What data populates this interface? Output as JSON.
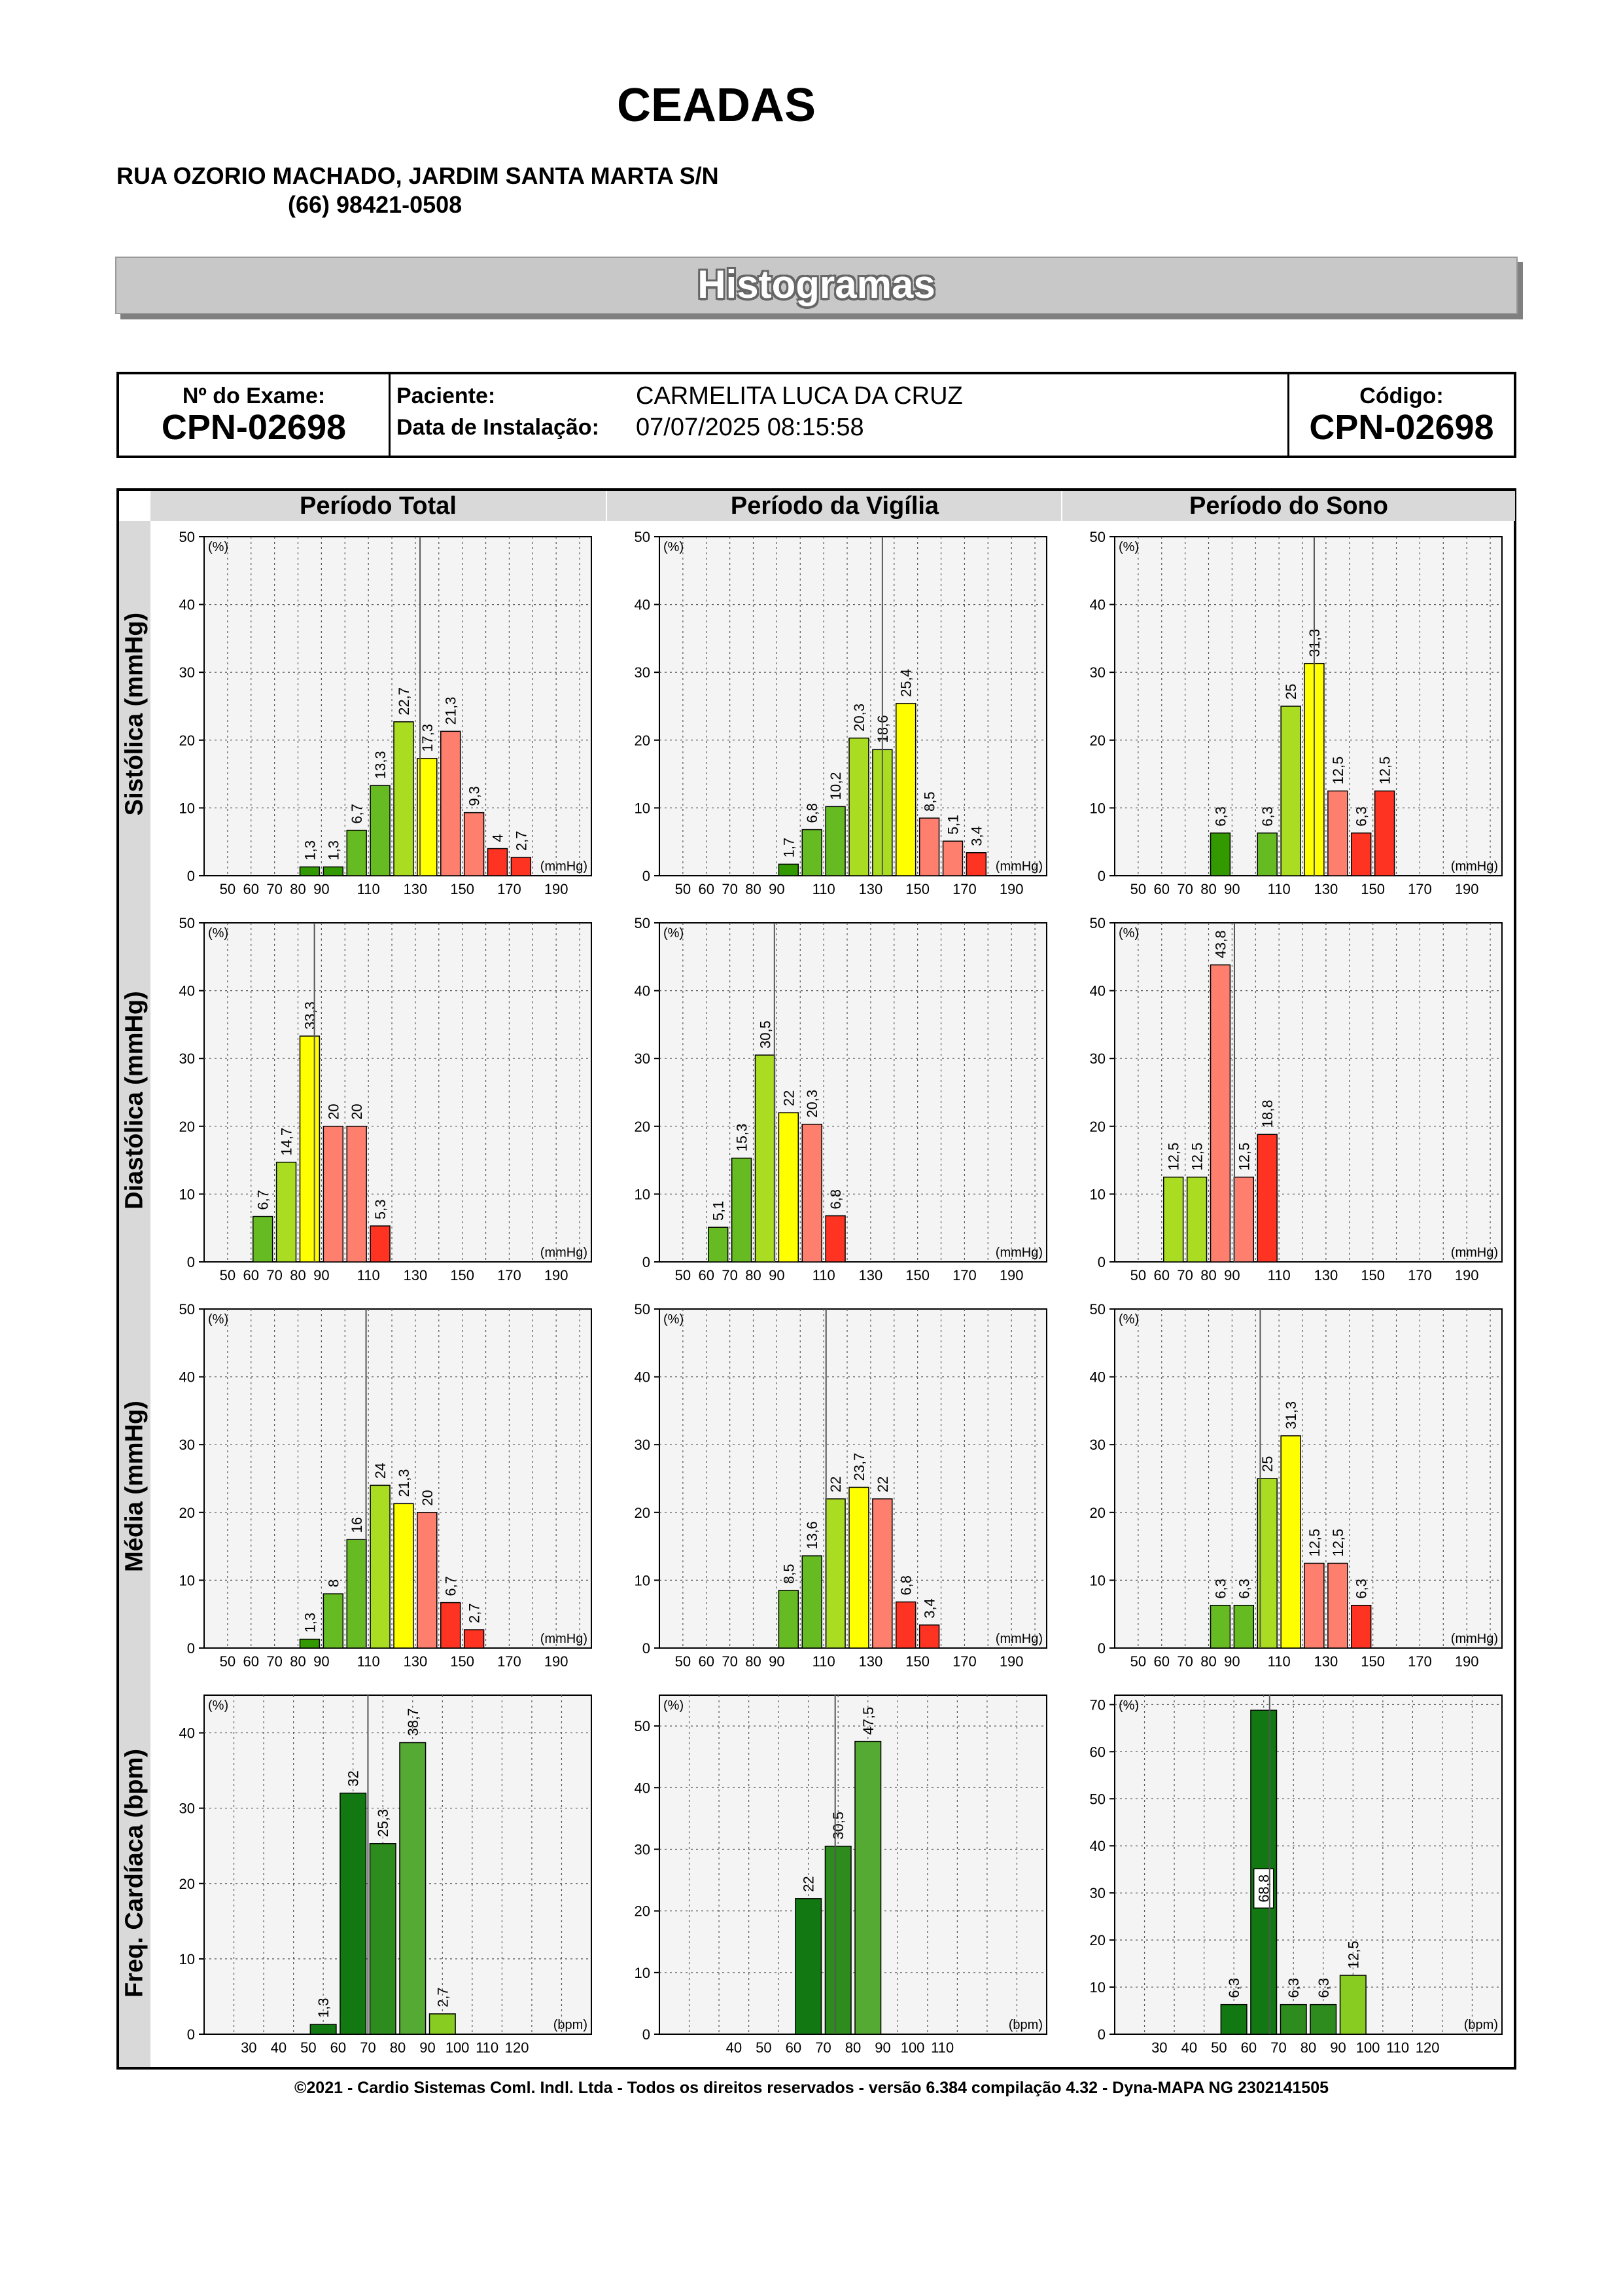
{
  "header": {
    "clinic_name": "CEADAS",
    "address": "RUA OZORIO MACHADO, JARDIM SANTA MARTA S/N",
    "phone": "(66) 98421-0508"
  },
  "banner_title": "Histogramas",
  "exam": {
    "exam_number_label": "Nº do Exame:",
    "exam_number": "CPN-02698",
    "patient_label": "Paciente:",
    "patient_name": "CARMELITA LUCA DA  CRUZ",
    "install_label": "Data de Instalação:",
    "install_date": "07/07/2025 08:15:58",
    "code_label": "Código:",
    "code": "CPN-02698"
  },
  "columns": [
    "Período Total",
    "Período da Vigília",
    "Período do Sono"
  ],
  "rows": [
    "Sistólica (mmHg)",
    "Diastólica (mmHg)",
    "Média (mmHg)",
    "Freq. Cardíaca (bpm)"
  ],
  "colors": {
    "dark_green": "#339900",
    "green": "#66bb22",
    "light_green": "#aadd22",
    "yellow": "#ffff00",
    "salmon": "#ff7f6e",
    "red": "#ff3322",
    "hr_dark": "#127812",
    "hr_mid": "#2e8b1e",
    "hr_light": "#55aa33",
    "hr_lime": "#88cc22",
    "plot_bg": "#f4f4f4"
  },
  "chart_data": [
    {
      "type": "bar",
      "row": "Sistólica (mmHg)",
      "column": "Período Total",
      "unit": "(mmHg)",
      "ylabel": "(%)",
      "ylim": [
        0,
        50
      ],
      "yticks": [
        0,
        10,
        20,
        30,
        40,
        50
      ],
      "xlim": [
        40,
        205
      ],
      "xticks": [
        50,
        60,
        70,
        80,
        90,
        110,
        130,
        150,
        170,
        190
      ],
      "bin_width": 10,
      "marker": 132,
      "bars": [
        {
          "x": 85,
          "value": 1.3,
          "label": "1,3",
          "color": "dark_green"
        },
        {
          "x": 95,
          "value": 1.3,
          "label": "1,3",
          "color": "dark_green"
        },
        {
          "x": 105,
          "value": 6.7,
          "label": "6,7",
          "color": "green"
        },
        {
          "x": 115,
          "value": 13.3,
          "label": "13,3",
          "color": "green"
        },
        {
          "x": 125,
          "value": 22.7,
          "label": "22,7",
          "color": "light_green"
        },
        {
          "x": 135,
          "value": 17.3,
          "label": "17,3",
          "color": "yellow"
        },
        {
          "x": 145,
          "value": 21.3,
          "label": "21,3",
          "color": "salmon"
        },
        {
          "x": 155,
          "value": 9.3,
          "label": "9,3",
          "color": "salmon"
        },
        {
          "x": 165,
          "value": 4,
          "label": "4",
          "color": "red"
        },
        {
          "x": 175,
          "value": 2.7,
          "label": "2,7",
          "color": "red"
        }
      ]
    },
    {
      "type": "bar",
      "row": "Sistólica (mmHg)",
      "column": "Período da Vigília",
      "unit": "(mmHg)",
      "ylabel": "(%)",
      "ylim": [
        0,
        50
      ],
      "yticks": [
        0,
        10,
        20,
        30,
        40,
        50
      ],
      "xlim": [
        40,
        205
      ],
      "xticks": [
        50,
        60,
        70,
        80,
        90,
        110,
        130,
        150,
        170,
        190
      ],
      "bin_width": 10,
      "marker": 135,
      "bars": [
        {
          "x": 95,
          "value": 1.7,
          "label": "1,7",
          "color": "dark_green"
        },
        {
          "x": 105,
          "value": 6.8,
          "label": "6,8",
          "color": "green"
        },
        {
          "x": 115,
          "value": 10.2,
          "label": "10,2",
          "color": "green"
        },
        {
          "x": 125,
          "value": 20.3,
          "label": "20,3",
          "color": "light_green"
        },
        {
          "x": 135,
          "value": 18.6,
          "label": "18,6",
          "color": "light_green"
        },
        {
          "x": 145,
          "value": 25.4,
          "label": "25,4",
          "color": "yellow"
        },
        {
          "x": 155,
          "value": 8.5,
          "label": "8,5",
          "color": "salmon"
        },
        {
          "x": 165,
          "value": 5.1,
          "label": "5,1",
          "color": "salmon"
        },
        {
          "x": 175,
          "value": 3.4,
          "label": "3,4",
          "color": "red"
        }
      ]
    },
    {
      "type": "bar",
      "row": "Sistólica (mmHg)",
      "column": "Período do Sono",
      "unit": "(mmHg)",
      "ylabel": "(%)",
      "ylim": [
        0,
        50
      ],
      "yticks": [
        0,
        10,
        20,
        30,
        40,
        50
      ],
      "xlim": [
        40,
        205
      ],
      "xticks": [
        50,
        60,
        70,
        80,
        90,
        110,
        130,
        150,
        170,
        190
      ],
      "bin_width": 10,
      "marker": 125,
      "bars": [
        {
          "x": 85,
          "value": 6.3,
          "label": "6,3",
          "color": "dark_green"
        },
        {
          "x": 105,
          "value": 6.3,
          "label": "6,3",
          "color": "green"
        },
        {
          "x": 115,
          "value": 25,
          "label": "25",
          "color": "light_green"
        },
        {
          "x": 125,
          "value": 31.3,
          "label": "31,3",
          "color": "yellow"
        },
        {
          "x": 135,
          "value": 12.5,
          "label": "12,5",
          "color": "salmon"
        },
        {
          "x": 145,
          "value": 6.3,
          "label": "6,3",
          "color": "red"
        },
        {
          "x": 155,
          "value": 12.5,
          "label": "12,5",
          "color": "red"
        }
      ]
    },
    {
      "type": "bar",
      "row": "Diastólica (mmHg)",
      "column": "Período Total",
      "unit": "(mmHg)",
      "ylabel": "(%)",
      "ylim": [
        0,
        50
      ],
      "yticks": [
        0,
        10,
        20,
        30,
        40,
        50
      ],
      "xlim": [
        40,
        205
      ],
      "xticks": [
        50,
        60,
        70,
        80,
        90,
        110,
        130,
        150,
        170,
        190
      ],
      "bin_width": 10,
      "marker": 87,
      "bars": [
        {
          "x": 65,
          "value": 6.7,
          "label": "6,7",
          "color": "green"
        },
        {
          "x": 75,
          "value": 14.7,
          "label": "14,7",
          "color": "light_green"
        },
        {
          "x": 85,
          "value": 33.3,
          "label": "33,3",
          "color": "yellow"
        },
        {
          "x": 95,
          "value": 20,
          "label": "20",
          "color": "salmon"
        },
        {
          "x": 105,
          "value": 20,
          "label": "20",
          "color": "salmon"
        },
        {
          "x": 115,
          "value": 5.3,
          "label": "5,3",
          "color": "red"
        }
      ]
    },
    {
      "type": "bar",
      "row": "Diastólica (mmHg)",
      "column": "Período da Vigília",
      "unit": "(mmHg)",
      "ylabel": "(%)",
      "ylim": [
        0,
        50
      ],
      "yticks": [
        0,
        10,
        20,
        30,
        40,
        50
      ],
      "xlim": [
        40,
        205
      ],
      "xticks": [
        50,
        60,
        70,
        80,
        90,
        110,
        130,
        150,
        170,
        190
      ],
      "bin_width": 10,
      "marker": 89,
      "bars": [
        {
          "x": 65,
          "value": 5.1,
          "label": "5,1",
          "color": "green"
        },
        {
          "x": 75,
          "value": 15.3,
          "label": "15,3",
          "color": "green"
        },
        {
          "x": 85,
          "value": 30.5,
          "label": "30,5",
          "color": "light_green"
        },
        {
          "x": 95,
          "value": 22,
          "label": "22",
          "color": "yellow"
        },
        {
          "x": 105,
          "value": 20.3,
          "label": "20,3",
          "color": "salmon"
        },
        {
          "x": 115,
          "value": 6.8,
          "label": "6,8",
          "color": "red"
        }
      ]
    },
    {
      "type": "bar",
      "row": "Diastólica (mmHg)",
      "column": "Período do Sono",
      "unit": "(mmHg)",
      "ylabel": "(%)",
      "ylim": [
        0,
        50
      ],
      "yticks": [
        0,
        10,
        20,
        30,
        40,
        50
      ],
      "xlim": [
        40,
        205
      ],
      "xticks": [
        50,
        60,
        70,
        80,
        90,
        110,
        130,
        150,
        170,
        190
      ],
      "bin_width": 10,
      "marker": 91,
      "bars": [
        {
          "x": 65,
          "value": 12.5,
          "label": "12,5",
          "color": "light_green"
        },
        {
          "x": 75,
          "value": 12.5,
          "label": "12,5",
          "color": "light_green"
        },
        {
          "x": 85,
          "value": 43.8,
          "label": "43,8",
          "color": "salmon"
        },
        {
          "x": 95,
          "value": 12.5,
          "label": "12,5",
          "color": "salmon"
        },
        {
          "x": 105,
          "value": 18.8,
          "label": "18,8",
          "color": "red"
        }
      ]
    },
    {
      "type": "bar",
      "row": "Média (mmHg)",
      "column": "Período Total",
      "unit": "(mmHg)",
      "ylabel": "(%)",
      "ylim": [
        0,
        50
      ],
      "yticks": [
        0,
        10,
        20,
        30,
        40,
        50
      ],
      "xlim": [
        40,
        205
      ],
      "xticks": [
        50,
        60,
        70,
        80,
        90,
        110,
        130,
        150,
        170,
        190
      ],
      "bin_width": 10,
      "marker": 109,
      "bars": [
        {
          "x": 85,
          "value": 1.3,
          "label": "1,3",
          "color": "dark_green"
        },
        {
          "x": 95,
          "value": 8,
          "label": "8",
          "color": "green"
        },
        {
          "x": 105,
          "value": 16,
          "label": "16",
          "color": "green"
        },
        {
          "x": 115,
          "value": 24,
          "label": "24",
          "color": "light_green"
        },
        {
          "x": 125,
          "value": 21.3,
          "label": "21,3",
          "color": "yellow"
        },
        {
          "x": 135,
          "value": 20,
          "label": "20",
          "color": "salmon"
        },
        {
          "x": 145,
          "value": 6.7,
          "label": "6,7",
          "color": "red"
        },
        {
          "x": 155,
          "value": 2.7,
          "label": "2,7",
          "color": "red"
        }
      ]
    },
    {
      "type": "bar",
      "row": "Média (mmHg)",
      "column": "Período da Vigília",
      "unit": "(mmHg)",
      "ylabel": "(%)",
      "ylim": [
        0,
        50
      ],
      "yticks": [
        0,
        10,
        20,
        30,
        40,
        50
      ],
      "xlim": [
        40,
        205
      ],
      "xticks": [
        50,
        60,
        70,
        80,
        90,
        110,
        130,
        150,
        170,
        190
      ],
      "bin_width": 10,
      "marker": 111,
      "bars": [
        {
          "x": 95,
          "value": 8.5,
          "label": "8,5",
          "color": "green"
        },
        {
          "x": 105,
          "value": 13.6,
          "label": "13,6",
          "color": "green"
        },
        {
          "x": 115,
          "value": 22,
          "label": "22",
          "color": "light_green"
        },
        {
          "x": 125,
          "value": 23.7,
          "label": "23,7",
          "color": "yellow"
        },
        {
          "x": 135,
          "value": 22,
          "label": "22",
          "color": "salmon"
        },
        {
          "x": 145,
          "value": 6.8,
          "label": "6,8",
          "color": "red"
        },
        {
          "x": 155,
          "value": 3.4,
          "label": "3,4",
          "color": "red"
        }
      ]
    },
    {
      "type": "bar",
      "row": "Média (mmHg)",
      "column": "Período do Sono",
      "unit": "(mmHg)",
      "ylabel": "(%)",
      "ylim": [
        0,
        50
      ],
      "yticks": [
        0,
        10,
        20,
        30,
        40,
        50
      ],
      "xlim": [
        40,
        205
      ],
      "xticks": [
        50,
        60,
        70,
        80,
        90,
        110,
        130,
        150,
        170,
        190
      ],
      "bin_width": 10,
      "marker": 102,
      "bars": [
        {
          "x": 85,
          "value": 6.3,
          "label": "6,3",
          "color": "green"
        },
        {
          "x": 95,
          "value": 6.3,
          "label": "6,3",
          "color": "green"
        },
        {
          "x": 105,
          "value": 25,
          "label": "25",
          "color": "light_green"
        },
        {
          "x": 115,
          "value": 31.3,
          "label": "31,3",
          "color": "yellow"
        },
        {
          "x": 125,
          "value": 12.5,
          "label": "12,5",
          "color": "salmon"
        },
        {
          "x": 135,
          "value": 12.5,
          "label": "12,5",
          "color": "salmon"
        },
        {
          "x": 145,
          "value": 6.3,
          "label": "6,3",
          "color": "red"
        }
      ]
    },
    {
      "type": "bar",
      "row": "Freq. Cardíaca (bpm)",
      "column": "Período Total",
      "unit": "(bpm)",
      "ylabel": "(%)",
      "ylim": [
        0,
        45
      ],
      "yticks": [
        0,
        10,
        20,
        30,
        40
      ],
      "xlim": [
        15,
        145
      ],
      "xticks": [
        30,
        40,
        50,
        60,
        70,
        80,
        90,
        100,
        110,
        120
      ],
      "bin_width": 10,
      "marker": 70,
      "bars": [
        {
          "x": 55,
          "value": 1.3,
          "label": "1,3",
          "color": "hr_dark"
        },
        {
          "x": 65,
          "value": 32,
          "label": "32",
          "color": "hr_dark"
        },
        {
          "x": 75,
          "value": 25.3,
          "label": "25,3",
          "color": "hr_mid"
        },
        {
          "x": 85,
          "value": 38.7,
          "label": "38,7",
          "color": "hr_light"
        },
        {
          "x": 95,
          "value": 2.7,
          "label": "2,7",
          "color": "hr_lime"
        }
      ]
    },
    {
      "type": "bar",
      "row": "Freq. Cardíaca (bpm)",
      "column": "Período da Vigília",
      "unit": "(bpm)",
      "ylabel": "(%)",
      "ylim": [
        0,
        55
      ],
      "yticks": [
        0,
        10,
        20,
        30,
        40,
        50
      ],
      "xlim": [
        15,
        145
      ],
      "xticks": [
        40,
        50,
        60,
        70,
        80,
        90,
        100,
        110
      ],
      "bin_width": 10,
      "marker": 74,
      "bars": [
        {
          "x": 65,
          "value": 22,
          "label": "22",
          "color": "hr_dark"
        },
        {
          "x": 75,
          "value": 30.5,
          "label": "30,5",
          "color": "hr_mid"
        },
        {
          "x": 85,
          "value": 47.5,
          "label": "47,5",
          "color": "hr_light"
        }
      ]
    },
    {
      "type": "bar",
      "row": "Freq. Cardíaca (bpm)",
      "column": "Período do Sono",
      "unit": "(bpm)",
      "ylabel": "(%)",
      "ylim": [
        0,
        72
      ],
      "yticks": [
        0,
        10,
        20,
        30,
        40,
        50,
        60,
        70
      ],
      "xlim": [
        15,
        145
      ],
      "xticks": [
        30,
        40,
        50,
        60,
        70,
        80,
        90,
        100,
        110,
        120
      ],
      "bin_width": 10,
      "marker": 67,
      "bars": [
        {
          "x": 55,
          "value": 6.3,
          "label": "6,3",
          "color": "hr_dark"
        },
        {
          "x": 65,
          "value": 68.8,
          "label": "68,8",
          "color": "hr_dark",
          "inside": true
        },
        {
          "x": 75,
          "value": 6.3,
          "label": "6,3",
          "color": "hr_mid"
        },
        {
          "x": 85,
          "value": 6.3,
          "label": "6,3",
          "color": "hr_mid"
        },
        {
          "x": 95,
          "value": 12.5,
          "label": "12,5",
          "color": "hr_lime"
        }
      ]
    }
  ],
  "footer": "©2021 - Cardio Sistemas Coml. Indl. Ltda - Todos os direitos reservados - versão 6.384 compilação 4.32 - Dyna-MAPA NG 2302141505"
}
